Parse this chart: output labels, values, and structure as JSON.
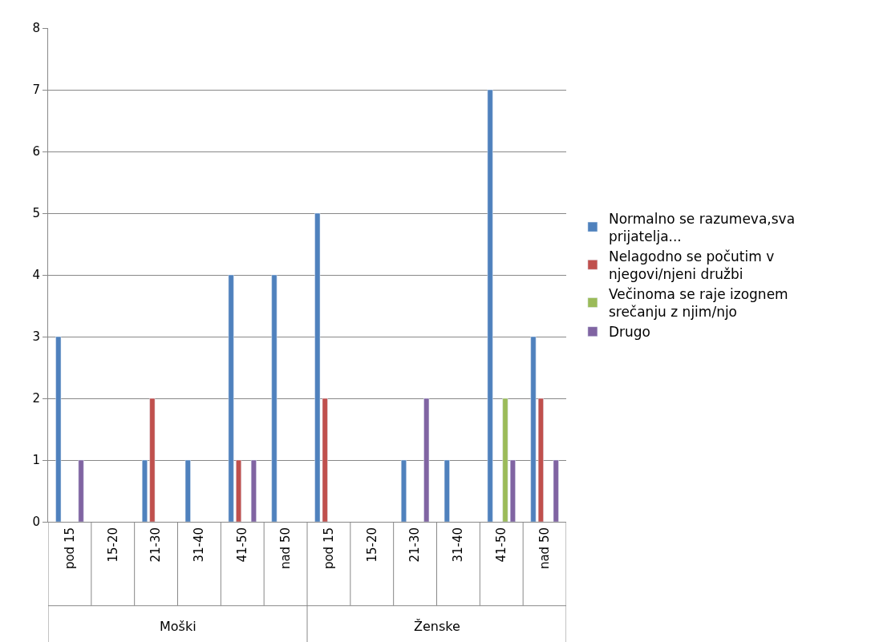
{
  "chart_data": {
    "type": "bar",
    "categories": [
      "pod 15",
      "15-20",
      "21-30",
      "31-40",
      "41-50",
      "nad 50",
      "pod 15",
      "15-20",
      "21-30",
      "31-40",
      "41-50",
      "nad 50"
    ],
    "series": [
      {
        "name": "Normalno se razumeva,sva prijatelja...",
        "color": "#4f81bd",
        "values": [
          3,
          null,
          1,
          1,
          4,
          4,
          5,
          null,
          1,
          1,
          7,
          3
        ]
      },
      {
        "name": "Nelagodno se počutim v njegovi/njeni družbi",
        "color": "#c0504d",
        "values": [
          null,
          null,
          2,
          null,
          1,
          null,
          2,
          null,
          null,
          null,
          null,
          2
        ]
      },
      {
        "name": "Večinoma se raje izognem srečanju z njim/njo",
        "color": "#9bbb59",
        "values": [
          null,
          null,
          null,
          null,
          null,
          null,
          null,
          null,
          null,
          null,
          2,
          null
        ]
      },
      {
        "name": "Drugo",
        "color": "#8064a2",
        "values": [
          1,
          null,
          null,
          null,
          1,
          null,
          null,
          null,
          2,
          null,
          1,
          1
        ]
      }
    ],
    "annotations": [
      "Moški",
      "Ženske"
    ],
    "ylim": [
      0,
      8
    ],
    "yticks": [
      0,
      1,
      2,
      3,
      4,
      5,
      6,
      7,
      8
    ],
    "grid": "y",
    "legend": "right"
  }
}
